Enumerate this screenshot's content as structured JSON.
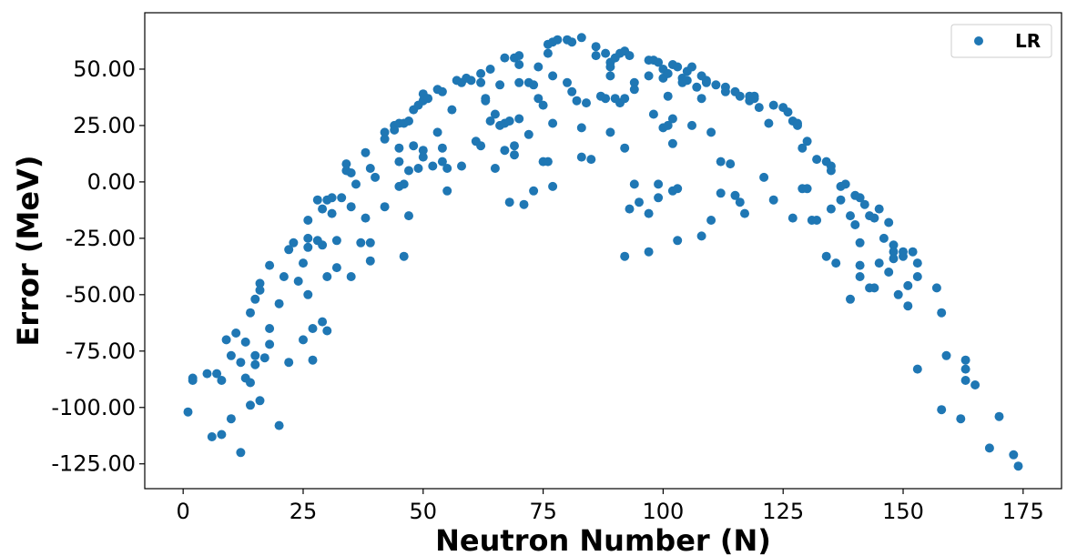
{
  "chart_data": {
    "type": "scatter",
    "xlabel": "Neutron Number (N)",
    "ylabel": "Error (MeV)",
    "xlim": [
      -8,
      183
    ],
    "ylim": [
      -136,
      75
    ],
    "x_ticks": [
      0,
      25,
      50,
      75,
      100,
      125,
      150,
      175
    ],
    "x_tick_labels": [
      "0",
      "25",
      "50",
      "75",
      "100",
      "125",
      "150",
      "175"
    ],
    "y_ticks": [
      50,
      25,
      0,
      -25,
      -50,
      -75,
      -100,
      -125
    ],
    "y_tick_labels": [
      "50.00",
      "25.00",
      "0.00",
      "-25.00",
      "-50.00",
      "-75.00",
      "-100.00",
      "-125.00"
    ],
    "grid": false,
    "legend_position": "top-right",
    "series": [
      {
        "name": "LR",
        "color": "#1f77b4",
        "points": [
          [
            1,
            -102
          ],
          [
            2,
            -87
          ],
          [
            2,
            -88
          ],
          [
            5,
            -85
          ],
          [
            6,
            -113
          ],
          [
            7,
            -85
          ],
          [
            8,
            -88
          ],
          [
            8,
            -112
          ],
          [
            9,
            -70
          ],
          [
            10,
            -105
          ],
          [
            10,
            -77
          ],
          [
            11,
            -67
          ],
          [
            12,
            -80
          ],
          [
            12,
            -120
          ],
          [
            13,
            -87
          ],
          [
            13,
            -71
          ],
          [
            14,
            -89
          ],
          [
            14,
            -99
          ],
          [
            14,
            -58
          ],
          [
            15,
            -81
          ],
          [
            15,
            -52
          ],
          [
            15,
            -77
          ],
          [
            16,
            -97
          ],
          [
            16,
            -45
          ],
          [
            16,
            -48
          ],
          [
            17,
            -78
          ],
          [
            18,
            -37
          ],
          [
            18,
            -65
          ],
          [
            18,
            -72
          ],
          [
            20,
            -54
          ],
          [
            20,
            -108
          ],
          [
            21,
            -42
          ],
          [
            22,
            -80
          ],
          [
            22,
            -30
          ],
          [
            23,
            -27
          ],
          [
            24,
            -44
          ],
          [
            25,
            -36
          ],
          [
            25,
            -70
          ],
          [
            26,
            -25
          ],
          [
            26,
            -17
          ],
          [
            26,
            -50
          ],
          [
            26,
            -29
          ],
          [
            27,
            -79
          ],
          [
            27,
            -65
          ],
          [
            28,
            -8
          ],
          [
            28,
            -26
          ],
          [
            29,
            -62
          ],
          [
            29,
            -28
          ],
          [
            29,
            -12
          ],
          [
            30,
            -8
          ],
          [
            30,
            -66
          ],
          [
            30,
            -42
          ],
          [
            31,
            -14
          ],
          [
            31,
            -7
          ],
          [
            32,
            -26
          ],
          [
            32,
            -38
          ],
          [
            33,
            -7
          ],
          [
            34,
            8
          ],
          [
            34,
            5
          ],
          [
            35,
            -42
          ],
          [
            35,
            4
          ],
          [
            35,
            -11
          ],
          [
            36,
            -1
          ],
          [
            37,
            -27
          ],
          [
            38,
            -16
          ],
          [
            38,
            13
          ],
          [
            39,
            6
          ],
          [
            39,
            -27
          ],
          [
            39,
            -35
          ],
          [
            40,
            2
          ],
          [
            42,
            -11
          ],
          [
            42,
            19
          ],
          [
            42,
            22
          ],
          [
            44,
            25
          ],
          [
            44,
            23
          ],
          [
            45,
            26
          ],
          [
            45,
            -2
          ],
          [
            45,
            9
          ],
          [
            45,
            15
          ],
          [
            46,
            -1
          ],
          [
            46,
            -33
          ],
          [
            46,
            26
          ],
          [
            47,
            27
          ],
          [
            47,
            -15
          ],
          [
            47,
            5
          ],
          [
            48,
            16
          ],
          [
            48,
            32
          ],
          [
            49,
            34
          ],
          [
            49,
            6
          ],
          [
            50,
            39
          ],
          [
            50,
            36
          ],
          [
            50,
            14
          ],
          [
            50,
            11
          ],
          [
            51,
            37
          ],
          [
            52,
            7
          ],
          [
            53,
            41
          ],
          [
            53,
            22
          ],
          [
            54,
            40
          ],
          [
            54,
            15
          ],
          [
            54,
            9
          ],
          [
            55,
            6
          ],
          [
            55,
            -4
          ],
          [
            56,
            32
          ],
          [
            57,
            45
          ],
          [
            58,
            44
          ],
          [
            58,
            7
          ],
          [
            59,
            46
          ],
          [
            60,
            45
          ],
          [
            61,
            18
          ],
          [
            62,
            16
          ],
          [
            62,
            44
          ],
          [
            62,
            48
          ],
          [
            63,
            37
          ],
          [
            63,
            36
          ],
          [
            64,
            50
          ],
          [
            64,
            27
          ],
          [
            65,
            6
          ],
          [
            65,
            30
          ],
          [
            66,
            43
          ],
          [
            66,
            25
          ],
          [
            67,
            26
          ],
          [
            67,
            14
          ],
          [
            67,
            55
          ],
          [
            68,
            27
          ],
          [
            68,
            -9
          ],
          [
            69,
            55
          ],
          [
            69,
            12
          ],
          [
            69,
            16
          ],
          [
            70,
            52
          ],
          [
            70,
            56
          ],
          [
            70,
            28
          ],
          [
            70,
            44
          ],
          [
            71,
            -10
          ],
          [
            72,
            44
          ],
          [
            72,
            21
          ],
          [
            73,
            -4
          ],
          [
            73,
            43
          ],
          [
            74,
            51
          ],
          [
            74,
            37
          ],
          [
            75,
            34
          ],
          [
            75,
            9
          ],
          [
            76,
            9
          ],
          [
            76,
            61
          ],
          [
            76,
            57
          ],
          [
            77,
            62
          ],
          [
            77,
            26
          ],
          [
            77,
            -2
          ],
          [
            77,
            47
          ],
          [
            78,
            63
          ],
          [
            80,
            63
          ],
          [
            80,
            44
          ],
          [
            81,
            40
          ],
          [
            81,
            62
          ],
          [
            82,
            36
          ],
          [
            83,
            64
          ],
          [
            83,
            24
          ],
          [
            83,
            11
          ],
          [
            84,
            35
          ],
          [
            85,
            10
          ],
          [
            86,
            56
          ],
          [
            86,
            60
          ],
          [
            87,
            38
          ],
          [
            88,
            37
          ],
          [
            88,
            57
          ],
          [
            89,
            53
          ],
          [
            89,
            51
          ],
          [
            89,
            47
          ],
          [
            89,
            22
          ],
          [
            90,
            37
          ],
          [
            90,
            55
          ],
          [
            91,
            57
          ],
          [
            91,
            35
          ],
          [
            92,
            58
          ],
          [
            92,
            37
          ],
          [
            92,
            15
          ],
          [
            92,
            -33
          ],
          [
            93,
            -12
          ],
          [
            93,
            56
          ],
          [
            94,
            44
          ],
          [
            94,
            41
          ],
          [
            94,
            -1
          ],
          [
            95,
            -9
          ],
          [
            97,
            -31
          ],
          [
            97,
            -14
          ],
          [
            97,
            47
          ],
          [
            97,
            54
          ],
          [
            98,
            30
          ],
          [
            98,
            54
          ],
          [
            99,
            53
          ],
          [
            99,
            -7
          ],
          [
            99,
            -1
          ],
          [
            100,
            50
          ],
          [
            100,
            46
          ],
          [
            100,
            24
          ],
          [
            101,
            38
          ],
          [
            101,
            48
          ],
          [
            101,
            25
          ],
          [
            102,
            52
          ],
          [
            102,
            28
          ],
          [
            102,
            17
          ],
          [
            102,
            -4
          ],
          [
            103,
            -3
          ],
          [
            103,
            -26
          ],
          [
            103,
            51
          ],
          [
            104,
            46
          ],
          [
            104,
            44
          ],
          [
            105,
            45
          ],
          [
            105,
            49
          ],
          [
            106,
            25
          ],
          [
            106,
            51
          ],
          [
            107,
            42
          ],
          [
            108,
            -24
          ],
          [
            108,
            37
          ],
          [
            108,
            47
          ],
          [
            109,
            45
          ],
          [
            109,
            44
          ],
          [
            110,
            22
          ],
          [
            110,
            -17
          ],
          [
            111,
            43
          ],
          [
            112,
            -5
          ],
          [
            112,
            9
          ],
          [
            113,
            40
          ],
          [
            113,
            42
          ],
          [
            114,
            8
          ],
          [
            115,
            -6
          ],
          [
            115,
            40
          ],
          [
            116,
            38
          ],
          [
            116,
            -9
          ],
          [
            117,
            -14
          ],
          [
            118,
            38
          ],
          [
            118,
            36
          ],
          [
            119,
            38
          ],
          [
            119,
            37
          ],
          [
            120,
            33
          ],
          [
            121,
            2
          ],
          [
            122,
            26
          ],
          [
            123,
            -8
          ],
          [
            123,
            34
          ],
          [
            125,
            33
          ],
          [
            126,
            31
          ],
          [
            127,
            -16
          ],
          [
            127,
            27
          ],
          [
            128,
            25
          ],
          [
            128,
            26
          ],
          [
            129,
            -3
          ],
          [
            129,
            15
          ],
          [
            130,
            18
          ],
          [
            130,
            -3
          ],
          [
            131,
            -17
          ],
          [
            132,
            10
          ],
          [
            132,
            -17
          ],
          [
            134,
            -33
          ],
          [
            134,
            9
          ],
          [
            135,
            7
          ],
          [
            135,
            5
          ],
          [
            135,
            -12
          ],
          [
            136,
            -36
          ],
          [
            137,
            -8
          ],
          [
            137,
            -2
          ],
          [
            138,
            -1
          ],
          [
            139,
            -15
          ],
          [
            139,
            -52
          ],
          [
            140,
            -6
          ],
          [
            140,
            -19
          ],
          [
            141,
            -7
          ],
          [
            141,
            -27
          ],
          [
            141,
            -42
          ],
          [
            141,
            -37
          ],
          [
            142,
            -10
          ],
          [
            143,
            -15
          ],
          [
            143,
            -47
          ],
          [
            144,
            -47
          ],
          [
            144,
            -16
          ],
          [
            145,
            -12
          ],
          [
            145,
            -36
          ],
          [
            146,
            -25
          ],
          [
            147,
            -18
          ],
          [
            147,
            -40
          ],
          [
            148,
            -28
          ],
          [
            148,
            -31
          ],
          [
            148,
            -34
          ],
          [
            149,
            -50
          ],
          [
            150,
            -33
          ],
          [
            150,
            -31
          ],
          [
            151,
            -55
          ],
          [
            151,
            -46
          ],
          [
            152,
            -31
          ],
          [
            153,
            -36
          ],
          [
            153,
            -42
          ],
          [
            153,
            -83
          ],
          [
            157,
            -47
          ],
          [
            158,
            -58
          ],
          [
            158,
            -101
          ],
          [
            159,
            -77
          ],
          [
            162,
            -105
          ],
          [
            163,
            -79
          ],
          [
            163,
            -83
          ],
          [
            163,
            -88
          ],
          [
            165,
            -90
          ],
          [
            168,
            -118
          ],
          [
            170,
            -104
          ],
          [
            173,
            -121
          ],
          [
            174,
            -126
          ]
        ]
      }
    ]
  }
}
